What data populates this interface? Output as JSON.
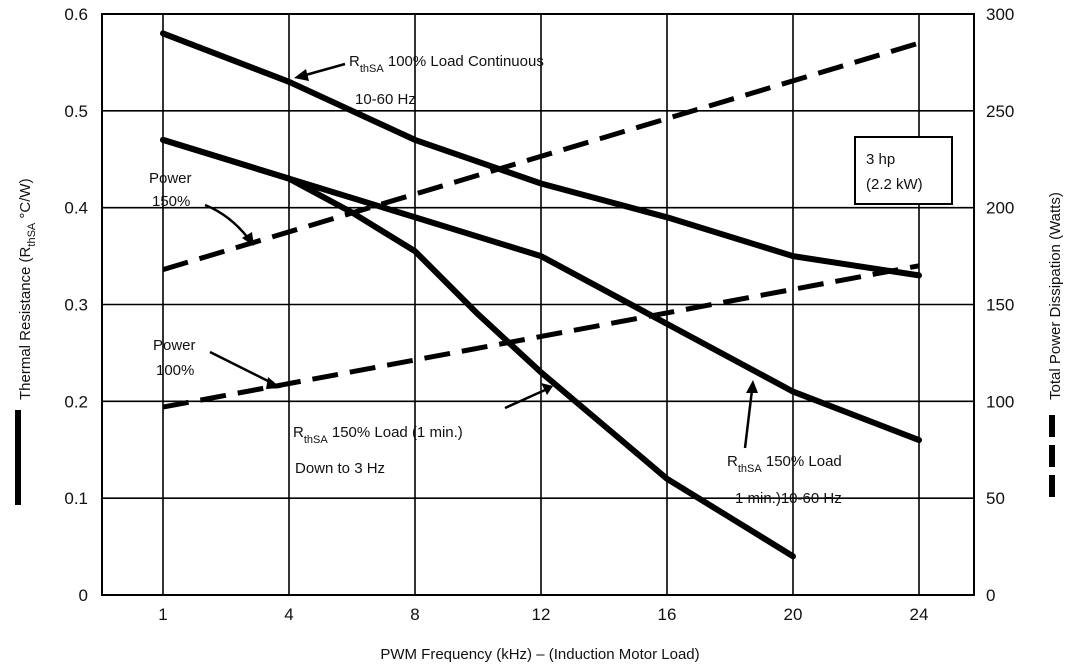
{
  "chart_data": {
    "type": "line",
    "xlabel": "PWM Frequency (kHz) – (Induction Motor Load)",
    "ylabel_left": "Thermal Resistance (R",
    "ylabel_left_sub": "thSA",
    "ylabel_left_unit": " °C/W)",
    "ylabel_right": "Total Power Dissipation (Watts)",
    "x_ticks": [
      1,
      4,
      8,
      12,
      16,
      20,
      24
    ],
    "y_left_ticks": [
      0,
      0.1,
      0.2,
      0.3,
      0.4,
      0.5,
      0.6
    ],
    "y_left_tick_labels": [
      "0",
      "0.1",
      "0.2",
      "0.3",
      "0.4",
      "0.5",
      "0.6"
    ],
    "y_right_ticks": [
      0,
      50,
      100,
      150,
      200,
      250,
      300
    ],
    "y_right_tick_labels": [
      "0",
      "50",
      "100",
      "150",
      "200",
      "250",
      "300"
    ],
    "ylim_left": [
      0,
      0.6
    ],
    "ylim_right": [
      0,
      300
    ],
    "grid": true,
    "series": [
      {
        "axis": "left",
        "style": "solid",
        "x": [
          1,
          4,
          8,
          12,
          16,
          20,
          22,
          24
        ],
        "y": [
          0.58,
          0.53,
          0.47,
          0.425,
          0.39,
          0.35,
          0.34,
          0.33
        ]
      },
      {
        "axis": "left",
        "style": "solid",
        "x": [
          1,
          4,
          8,
          12,
          16,
          20,
          24
        ],
        "y": [
          0.47,
          0.43,
          0.39,
          0.35,
          0.28,
          0.21,
          0.16
        ]
      },
      {
        "axis": "left",
        "style": "solid",
        "x": [
          1,
          4,
          6,
          8,
          10,
          12,
          14,
          16,
          18,
          20
        ],
        "y": [
          0.47,
          0.43,
          0.395,
          0.355,
          0.29,
          0.23,
          0.175,
          0.12,
          0.08,
          0.04
        ]
      },
      {
        "axis": "right",
        "style": "dashed",
        "x": [
          1,
          24
        ],
        "y": [
          168,
          285
        ]
      },
      {
        "axis": "right",
        "style": "dashed",
        "x": [
          1,
          24
        ],
        "y": [
          97,
          170
        ]
      }
    ],
    "annotations": {
      "r100": {
        "r": "R",
        "sub": "thSA",
        "line1": " 100% Load Continuous",
        "line2": "10-60 Hz"
      },
      "r150down": {
        "r": "R",
        "sub": "thSA",
        "line1": " 150% Load (1 min.)",
        "line2": "Down to 3 Hz"
      },
      "r150": {
        "r": "R",
        "sub": "thSA",
        "line1": " 150% Load",
        "line2": "1 min.)10-60 Hz"
      },
      "power150": {
        "line1": "Power",
        "line2": "150%"
      },
      "power100": {
        "line1": "Power",
        "line2": "100%"
      },
      "box": {
        "line1": "3 hp",
        "line2": "(2.2 kW)"
      }
    }
  }
}
